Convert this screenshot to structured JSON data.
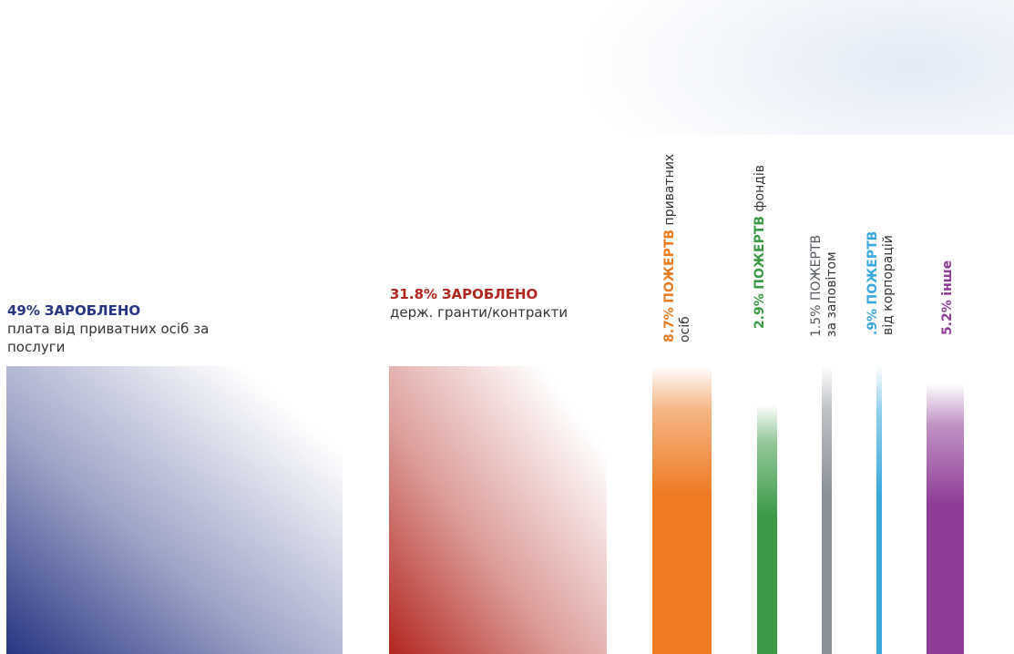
{
  "chart_data": {
    "type": "bar",
    "categories": [
      "ЗАРОБЛЕНО плата від приватних осіб за послуги",
      "ЗАРОБЛЕНО держ. гранти/контракти",
      "ПОЖЕРТВ приватних осіб",
      "ПОЖЕРТВ фондів",
      "ПОЖЕРТВ за заповітом",
      "ПОЖЕРТВ від корпорацій",
      "інше"
    ],
    "values": [
      49,
      31.8,
      8.7,
      2.9,
      1.5,
      0.9,
      5.2
    ],
    "unit": "%",
    "colors": [
      "#283583",
      "#b2261f",
      "#ee7a22",
      "#3c9a47",
      "#8a9098",
      "#3aa8dc",
      "#8e3b96"
    ],
    "labels": [
      {
        "pct": "49%",
        "tag": "ЗАРОБЛЕНО",
        "line1": "плата від приватних осіб за",
        "line2": "послуги"
      },
      {
        "pct": "31.8%",
        "tag": "ЗАРОБЛЕНО",
        "line1": "держ. гранти/контракти",
        "line2": ""
      },
      {
        "pct": "8.7%",
        "tag": "ПОЖЕРТВ",
        "line1": "приватних",
        "line2": "осіб"
      },
      {
        "pct": "2.9%",
        "tag": "ПОЖЕРТВ",
        "line1": "фондів",
        "line2": ""
      },
      {
        "pct": "1.5%",
        "tag": "ПОЖЕРТВ",
        "line1": "за заповітом",
        "line2": ""
      },
      {
        "pct": ".9%",
        "tag": "ПОЖЕРТВ",
        "line1": "від корпорацій",
        "line2": ""
      },
      {
        "pct": "5.2%",
        "tag": "інше",
        "line1": "",
        "line2": ""
      }
    ]
  }
}
